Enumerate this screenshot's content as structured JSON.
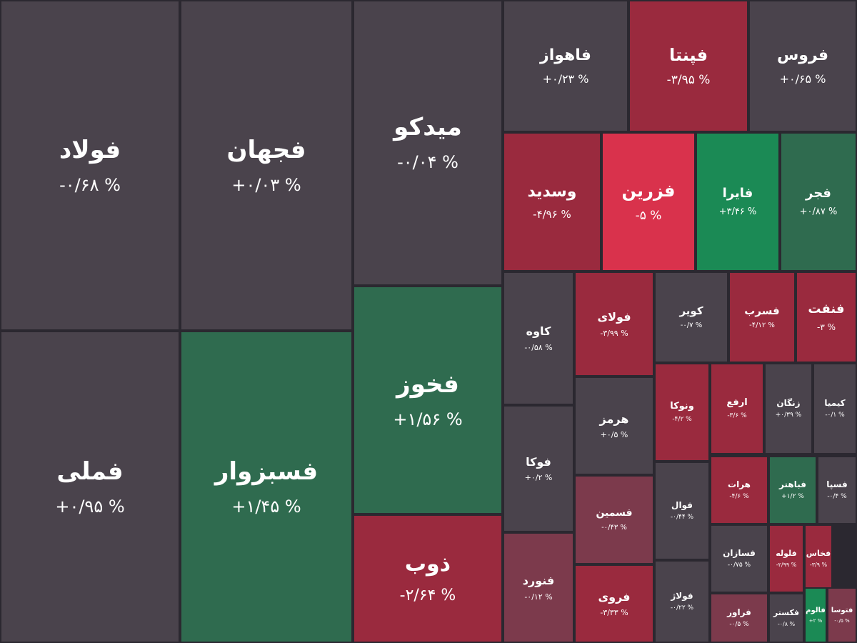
{
  "chart_data": {
    "type": "treemap",
    "colors": {
      "neutral": "#4a434c",
      "negative": "#9a2a3e",
      "strong_negative": "#d9324c",
      "mild_negative": "#7c3a4c",
      "positive": "#2f6b4f",
      "strong_positive": "#1b8a55",
      "background": "#2b2830"
    },
    "tiles": [
      {
        "symbol": "فولاد",
        "change": "-۰/۶۸ %",
        "value": -0.68
      },
      {
        "symbol": "فجهان",
        "change": "+۰/۰۳ %",
        "value": 0.03
      },
      {
        "symbol": "میدکو",
        "change": "-۰/۰۴ %",
        "value": -0.04
      },
      {
        "symbol": "فاهواز",
        "change": "+۰/۲۳ %",
        "value": 0.23
      },
      {
        "symbol": "فپنتا",
        "change": "-۳/۹۵ %",
        "value": -3.95
      },
      {
        "symbol": "فروس",
        "change": "+۰/۶۵ %",
        "value": 0.65
      },
      {
        "symbol": "وسدید",
        "change": "-۴/۹۶ %",
        "value": -4.96
      },
      {
        "symbol": "فزرین",
        "change": "-۵ %",
        "value": -5
      },
      {
        "symbol": "فایرا",
        "change": "+۳/۴۶ %",
        "value": 3.46
      },
      {
        "symbol": "فجر",
        "change": "+۰/۸۷ %",
        "value": 0.87
      },
      {
        "symbol": "فملی",
        "change": "+۰/۹۵ %",
        "value": 0.95
      },
      {
        "symbol": "فسبزوار",
        "change": "+۱/۴۵ %",
        "value": 1.45
      },
      {
        "symbol": "فخوز",
        "change": "+۱/۵۶ %",
        "value": 1.56
      },
      {
        "symbol": "ذوب",
        "change": "-۲/۶۴ %",
        "value": -2.64
      },
      {
        "symbol": "کاوه",
        "change": "-۰/۵۸ %",
        "value": -0.58
      },
      {
        "symbol": "فوکا",
        "change": "+۰/۲ %",
        "value": 0.2
      },
      {
        "symbol": "فنورد",
        "change": "-۰/۱۲ %",
        "value": -0.12
      },
      {
        "symbol": "فولای",
        "change": "-۳/۹۹ %",
        "value": -3.99
      },
      {
        "symbol": "هرمز",
        "change": "+۰/۵ %",
        "value": 0.5
      },
      {
        "symbol": "فسمین",
        "change": "-۰/۴۳ %",
        "value": -0.43
      },
      {
        "symbol": "فروی",
        "change": "-۳/۳۳ %",
        "value": -3.33
      },
      {
        "symbol": "کویر",
        "change": "-۰/۷ %",
        "value": -0.7
      },
      {
        "symbol": "فسرب",
        "change": "-۴/۱۲ %",
        "value": -4.12
      },
      {
        "symbol": "فنفت",
        "change": "-۳ %",
        "value": -3
      },
      {
        "symbol": "ونوکا",
        "change": "-۴/۲ %",
        "value": -4.2
      },
      {
        "symbol": "ارفع",
        "change": "-۳/۶ %",
        "value": -3.6
      },
      {
        "symbol": "زنگان",
        "change": "+۰/۳۹ %",
        "value": 0.39
      },
      {
        "symbol": "کیمیا",
        "change": "-۰/۱ %",
        "value": -0.1
      },
      {
        "symbol": "فوال",
        "change": "-۰/۴۴ %",
        "value": -0.44
      },
      {
        "symbol": "هرات",
        "change": "-۴/۶ %",
        "value": -4.6
      },
      {
        "symbol": "فباهنر",
        "change": "+۱/۲ %",
        "value": 1.2
      },
      {
        "symbol": "فسپا",
        "change": "-۰/۴ %",
        "value": -0.4
      },
      {
        "symbol": "فولاژ",
        "change": "-۰/۲۲ %",
        "value": -0.22
      },
      {
        "symbol": "فسازان",
        "change": "-۰/۷۵ %",
        "value": -0.75
      },
      {
        "symbol": "فلوله",
        "change": "-۲/۹۹ %",
        "value": -2.99
      },
      {
        "symbol": "فخاس",
        "change": "-۳/۹ %",
        "value": -3.9
      },
      {
        "symbol": "فراور",
        "change": "-۰/۵ %",
        "value": -0.5
      },
      {
        "symbol": "فکستر",
        "change": "-۰/۸ %",
        "value": -0.8
      },
      {
        "symbol": "فالوم",
        "change": "+۲ %",
        "value": 2
      },
      {
        "symbol": "فتوسا",
        "change": "-۰/۵ %",
        "value": -0.5
      }
    ]
  }
}
